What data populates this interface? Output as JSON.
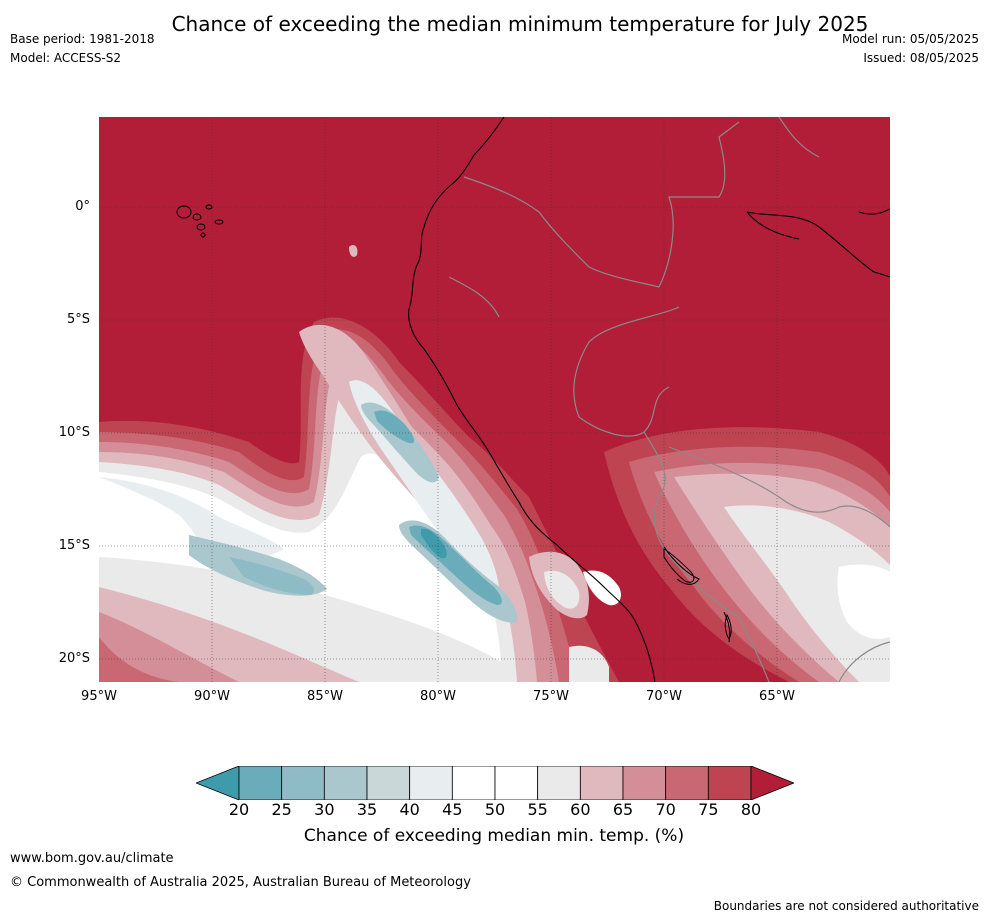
{
  "title": "Chance of exceeding the median minimum temperature for July 2025",
  "base_period": "Base period: 1981-2018",
  "model": "Model: ACCESS-S2",
  "model_run": "Model run: 05/05/2025",
  "issued": "Issued: 08/05/2025",
  "map": {
    "lat_labels": [
      "0°",
      "5°S",
      "10°S",
      "15°S",
      "20°S"
    ],
    "lon_labels": [
      "95°W",
      "90°W",
      "85°W",
      "80°W",
      "75°W",
      "70°W",
      "65°W"
    ]
  },
  "colorbar": {
    "label": "Chance of exceeding median min. temp. (%)",
    "ticks": [
      "20",
      "25",
      "30",
      "35",
      "40",
      "45",
      "50",
      "55",
      "60",
      "65",
      "70",
      "75",
      "80"
    ],
    "colors": [
      "#3e9bab",
      "#6aacba",
      "#8fbbc6",
      "#aac7cd",
      "#c9d7d8",
      "#e8eef0",
      "#ffffff",
      "#ffffff",
      "#eaeaea",
      "#e0b9bf",
      "#d48e98",
      "#c96772",
      "#be4452",
      "#b21e38"
    ]
  },
  "footer": {
    "url": "www.bom.gov.au/climate",
    "copyright": "© Commonwealth of Australia 2025, Australian Bureau of Meteorology",
    "note": "Boundaries are not considered authoritative"
  }
}
